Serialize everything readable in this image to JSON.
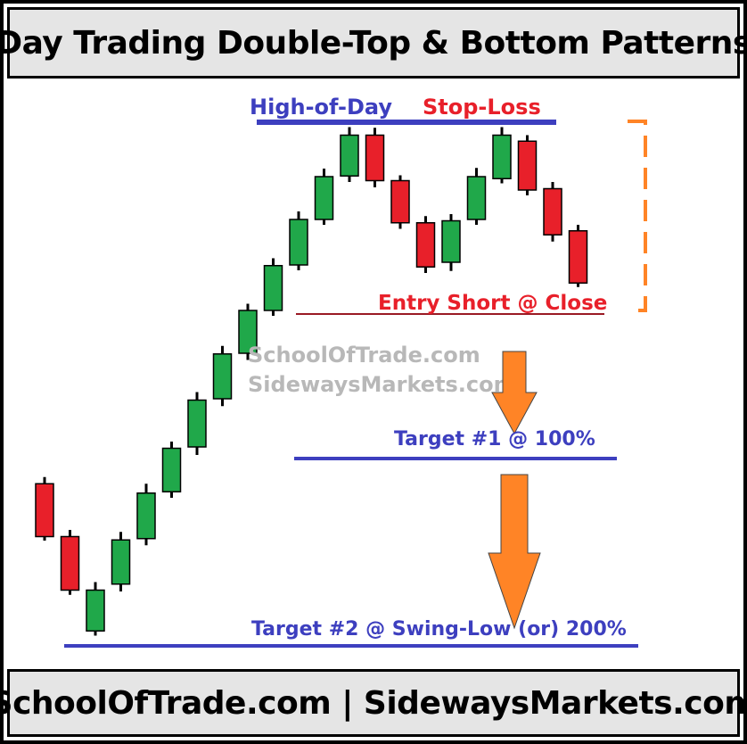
{
  "header": {
    "title": "Day Trading Double-Top & Bottom Patterns"
  },
  "footer": {
    "text": "SchoolOfTrade.com | SidewaysMarkets.com"
  },
  "labels": {
    "high_of_day": "High-of-Day",
    "stop_loss": "Stop-Loss",
    "entry": "Entry Short @ Close",
    "target1": "Target #1 @ 100%",
    "target2": "Target #2 @ Swing-Low (or) 200%",
    "watermark_line1": "SchoolOfTrade.com",
    "watermark_line2": "SidewaysMarkets.com"
  },
  "colors": {
    "bull": "#20a84a",
    "bear": "#e8202a",
    "level_line": "#3d3fbf",
    "entry_line": "#9a1a24",
    "arrow": "#ff8426",
    "bracket": "#ff8426",
    "watermark": "#b8b8b8"
  },
  "candles": [
    {
      "dir": "bear",
      "open": 96.5,
      "close": 88.6,
      "high": 97.5,
      "low": 88.0
    },
    {
      "dir": "bear",
      "open": 88.6,
      "close": 80.6,
      "high": 89.6,
      "low": 79.9
    },
    {
      "dir": "bull",
      "open": 74.5,
      "close": 80.6,
      "high": 81.8,
      "low": 73.8
    },
    {
      "dir": "bull",
      "open": 81.5,
      "close": 88.1,
      "high": 89.3,
      "low": 80.4
    },
    {
      "dir": "bull",
      "open": 88.3,
      "close": 95.1,
      "high": 96.5,
      "low": 87.3
    },
    {
      "dir": "bull",
      "open": 95.3,
      "close": 101.8,
      "high": 102.8,
      "low": 94.4
    },
    {
      "dir": "bull",
      "open": 102.0,
      "close": 109.0,
      "high": 110.2,
      "low": 100.8
    },
    {
      "dir": "bull",
      "open": 109.2,
      "close": 115.9,
      "high": 117.1,
      "low": 108.1
    },
    {
      "dir": "bull",
      "open": 116.0,
      "close": 122.4,
      "high": 123.4,
      "low": 115.0
    },
    {
      "dir": "bull",
      "open": 122.4,
      "close": 129.1,
      "high": 130.2,
      "low": 121.6
    },
    {
      "dir": "bull",
      "open": 129.2,
      "close": 136.0,
      "high": 137.2,
      "low": 128.4
    },
    {
      "dir": "bull",
      "open": 136.0,
      "close": 142.4,
      "high": 143.6,
      "low": 135.2
    },
    {
      "dir": "bull",
      "open": 142.5,
      "close": 148.6,
      "high": 149.8,
      "low": 141.6
    },
    {
      "dir": "bear",
      "open": 148.6,
      "close": 141.8,
      "high": 149.7,
      "low": 140.8
    },
    {
      "dir": "bear",
      "open": 141.8,
      "close": 135.5,
      "high": 142.6,
      "low": 134.6
    },
    {
      "dir": "bear",
      "open": 135.5,
      "close": 128.9,
      "high": 136.5,
      "low": 128.0
    },
    {
      "dir": "bull",
      "open": 129.6,
      "close": 135.8,
      "high": 136.8,
      "low": 128.3
    },
    {
      "dir": "bull",
      "open": 136.0,
      "close": 142.4,
      "high": 143.7,
      "low": 135.2
    },
    {
      "dir": "bull",
      "open": 142.1,
      "close": 148.6,
      "high": 149.8,
      "low": 141.4
    },
    {
      "dir": "bear",
      "open": 147.7,
      "close": 140.4,
      "high": 148.6,
      "low": 139.6
    },
    {
      "dir": "bear",
      "open": 140.6,
      "close": 133.7,
      "high": 141.6,
      "low": 132.7
    },
    {
      "dir": "bear",
      "open": 134.3,
      "close": 126.5,
      "high": 135.2,
      "low": 125.9
    }
  ]
}
